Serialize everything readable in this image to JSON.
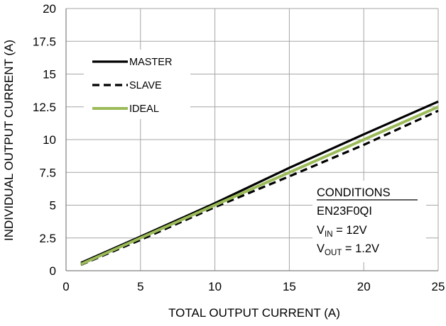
{
  "chart_data": {
    "type": "line",
    "xlabel": "TOTAL OUTPUT CURRENT (A)",
    "ylabel": "INDIVIDUAL OUTPUT CURRENT (A)",
    "xlim": [
      0,
      25
    ],
    "ylim": [
      0,
      20
    ],
    "x_ticks": [
      0,
      5,
      10,
      15,
      20,
      25
    ],
    "y_ticks": [
      0,
      2.5,
      5,
      7.5,
      10,
      12.5,
      15,
      17.5,
      20
    ],
    "x_tick_labels": [
      "0",
      "5",
      "10",
      "15",
      "20",
      "25"
    ],
    "y_tick_labels": [
      "0",
      "2.5",
      "5",
      "7.5",
      "10",
      "12.5",
      "15",
      "17.5",
      "20"
    ],
    "grid": true,
    "legend_position": "top-left",
    "series": [
      {
        "name": "MASTER",
        "style": "solid",
        "color": "#000000",
        "x": [
          1,
          5,
          10,
          15,
          20,
          25
        ],
        "y": [
          0.6,
          2.6,
          5.15,
          7.85,
          10.4,
          12.9
        ]
      },
      {
        "name": "SLAVE",
        "style": "dashed",
        "color": "#000000",
        "x": [
          1,
          5,
          10,
          15,
          20,
          25
        ],
        "y": [
          0.45,
          2.35,
          4.85,
          7.2,
          9.6,
          12.2
        ]
      },
      {
        "name": "IDEAL",
        "style": "solid",
        "color": "#9bbb59",
        "x": [
          1,
          5,
          10,
          15,
          20,
          25
        ],
        "y": [
          0.5,
          2.5,
          5.0,
          7.5,
          10.0,
          12.5
        ]
      }
    ],
    "conditions": {
      "title": "CONDITIONS",
      "device": "EN23F0QI",
      "vin_main": "V",
      "vin_sub": "IN",
      "vin_value": " = 12V",
      "vout_main": "V",
      "vout_sub": "OUT",
      "vout_value": " = 1.2V"
    }
  }
}
